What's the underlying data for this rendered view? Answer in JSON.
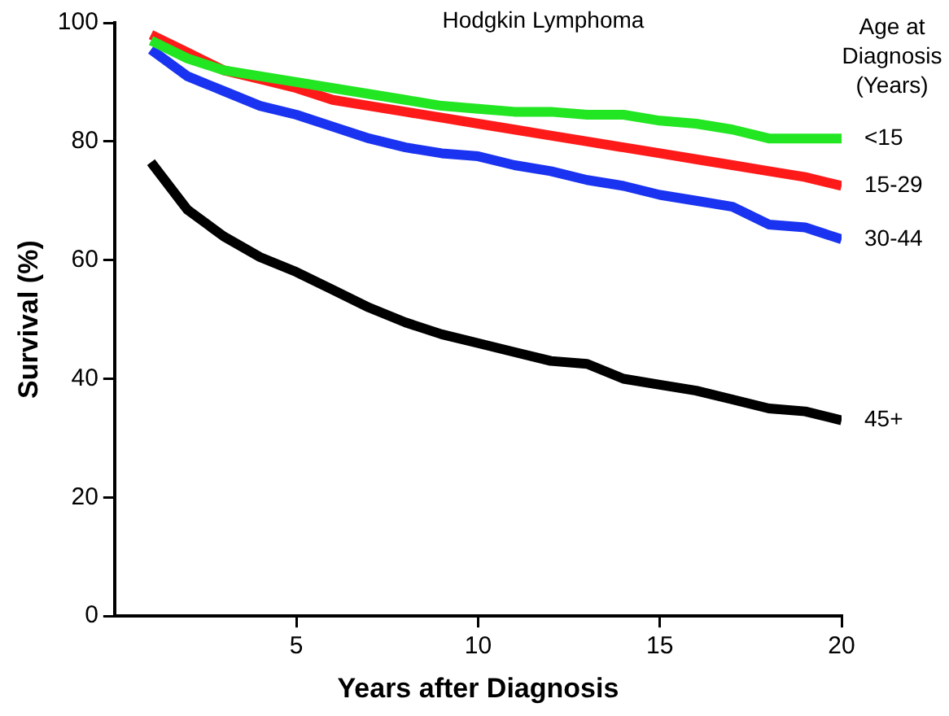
{
  "chart_data": {
    "type": "line",
    "title": "Hodgkin Lymphoma",
    "xlabel": "Years after Diagnosis",
    "ylabel": "Survival (%)",
    "legend_title": "Age at Diagnosis (Years)",
    "legend": "right",
    "grid": false,
    "marker": "none",
    "line_style": "solid",
    "x": [
      1,
      2,
      3,
      4,
      5,
      6,
      7,
      8,
      9,
      10,
      11,
      12,
      13,
      14,
      15,
      16,
      17,
      18,
      19,
      20
    ],
    "series": [
      {
        "name": "<15",
        "color": "#22e622",
        "values": [
          97,
          94,
          92,
          91,
          90,
          89,
          88,
          87,
          86,
          85.5,
          85,
          85,
          84.5,
          84.5,
          83.5,
          83,
          82,
          80.5,
          80.5,
          80.5
        ]
      },
      {
        "name": "15-29",
        "color": "#ff1a1a",
        "values": [
          98,
          95,
          92,
          90.5,
          89,
          87,
          86,
          85,
          84,
          83,
          82,
          81,
          80,
          79,
          78,
          77,
          76,
          75,
          74,
          72.5
        ]
      },
      {
        "name": "30-44",
        "color": "#1a33f0",
        "values": [
          95.5,
          91,
          88.5,
          86,
          84.5,
          82.5,
          80.5,
          79,
          78,
          77.5,
          76,
          75,
          73.5,
          72.5,
          71,
          70,
          69,
          66,
          65.5,
          63.5
        ]
      },
      {
        "name": "45+",
        "color": "#000000",
        "values": [
          76.5,
          68.5,
          64,
          60.5,
          58,
          55,
          52,
          49.5,
          47.5,
          46,
          44.5,
          43,
          42.5,
          40,
          39,
          38,
          36.5,
          35,
          34.5,
          33
        ]
      }
    ],
    "xlim": [
      0,
      20
    ],
    "xticks": [
      5,
      10,
      15,
      20
    ],
    "ylim": [
      0,
      100
    ],
    "yticks": [
      0,
      20,
      40,
      60,
      80,
      100
    ]
  }
}
